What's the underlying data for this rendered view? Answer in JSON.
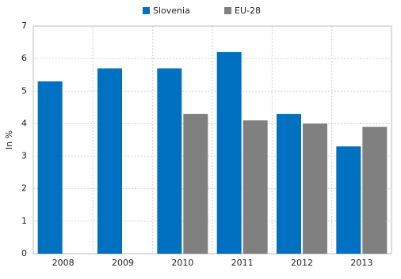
{
  "chart_data": {
    "type": "bar",
    "y_label": "In %",
    "categories": [
      "2008",
      "2009",
      "2010",
      "2011",
      "2012",
      "2013"
    ],
    "series": [
      {
        "name": "Slovenia",
        "color": "#0070c0",
        "values": [
          5.3,
          5.7,
          5.7,
          6.2,
          4.3,
          3.3
        ]
      },
      {
        "name": "EU-28",
        "color": "#808080",
        "values": [
          null,
          null,
          4.3,
          4.1,
          4.0,
          3.9
        ]
      }
    ],
    "ylim": [
      0,
      7
    ],
    "yticks": [
      0,
      1,
      2,
      3,
      4,
      5,
      6,
      7
    ],
    "grid": true,
    "legend": "top"
  }
}
